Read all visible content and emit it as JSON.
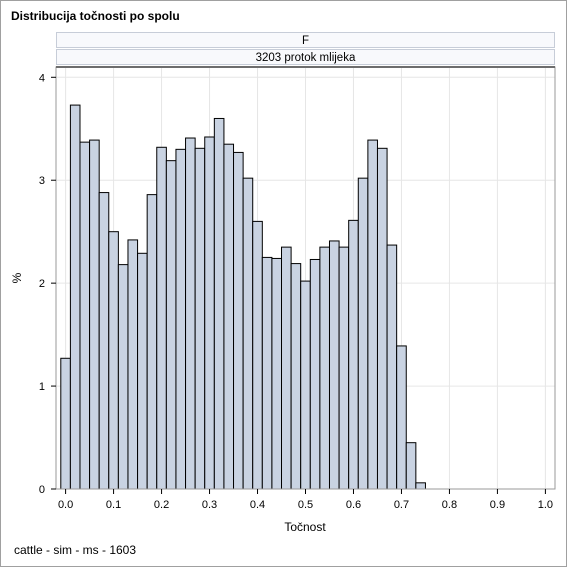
{
  "title": "Distribucija točnosti po spolu",
  "footer": "cattle - sim - ms - 1603",
  "panel": {
    "row1": "F",
    "row2": "3203 protok mlijeka"
  },
  "chart_data": {
    "type": "bar",
    "subtype": "histogram",
    "xlabel": "Točnost",
    "ylabel": "%",
    "xlim": [
      -0.02,
      1.02
    ],
    "ylim": [
      0,
      4.1
    ],
    "xticks": [
      "0.0",
      "0.1",
      "0.2",
      "0.3",
      "0.4",
      "0.5",
      "0.6",
      "0.7",
      "0.8",
      "0.9",
      "1.0"
    ],
    "yticks": [
      "0",
      "1",
      "2",
      "3",
      "4"
    ],
    "bin_width": 0.02,
    "bins": [
      {
        "x": 0.0,
        "value": 1.27
      },
      {
        "x": 0.02,
        "value": 3.73
      },
      {
        "x": 0.04,
        "value": 3.37
      },
      {
        "x": 0.06,
        "value": 3.39
      },
      {
        "x": 0.08,
        "value": 2.88
      },
      {
        "x": 0.1,
        "value": 2.5
      },
      {
        "x": 0.12,
        "value": 2.18
      },
      {
        "x": 0.14,
        "value": 2.42
      },
      {
        "x": 0.16,
        "value": 2.29
      },
      {
        "x": 0.18,
        "value": 2.86
      },
      {
        "x": 0.2,
        "value": 3.32
      },
      {
        "x": 0.22,
        "value": 3.19
      },
      {
        "x": 0.24,
        "value": 3.3
      },
      {
        "x": 0.26,
        "value": 3.41
      },
      {
        "x": 0.28,
        "value": 3.31
      },
      {
        "x": 0.3,
        "value": 3.42
      },
      {
        "x": 0.32,
        "value": 3.6
      },
      {
        "x": 0.34,
        "value": 3.35
      },
      {
        "x": 0.36,
        "value": 3.27
      },
      {
        "x": 0.38,
        "value": 3.02
      },
      {
        "x": 0.4,
        "value": 2.6
      },
      {
        "x": 0.42,
        "value": 2.25
      },
      {
        "x": 0.44,
        "value": 2.24
      },
      {
        "x": 0.46,
        "value": 2.35
      },
      {
        "x": 0.48,
        "value": 2.19
      },
      {
        "x": 0.5,
        "value": 2.02
      },
      {
        "x": 0.52,
        "value": 2.23
      },
      {
        "x": 0.54,
        "value": 2.35
      },
      {
        "x": 0.56,
        "value": 2.41
      },
      {
        "x": 0.58,
        "value": 2.35
      },
      {
        "x": 0.6,
        "value": 2.61
      },
      {
        "x": 0.62,
        "value": 3.02
      },
      {
        "x": 0.64,
        "value": 3.39
      },
      {
        "x": 0.66,
        "value": 3.31
      },
      {
        "x": 0.68,
        "value": 2.37
      },
      {
        "x": 0.7,
        "value": 1.39
      },
      {
        "x": 0.72,
        "value": 0.45
      },
      {
        "x": 0.74,
        "value": 0.06
      }
    ],
    "grid": true,
    "colors": {
      "bar_fill": "#c9d3e2",
      "bar_stroke": "#000000",
      "grid": "#e6e6e6",
      "axis": "#9a9a9a"
    }
  }
}
